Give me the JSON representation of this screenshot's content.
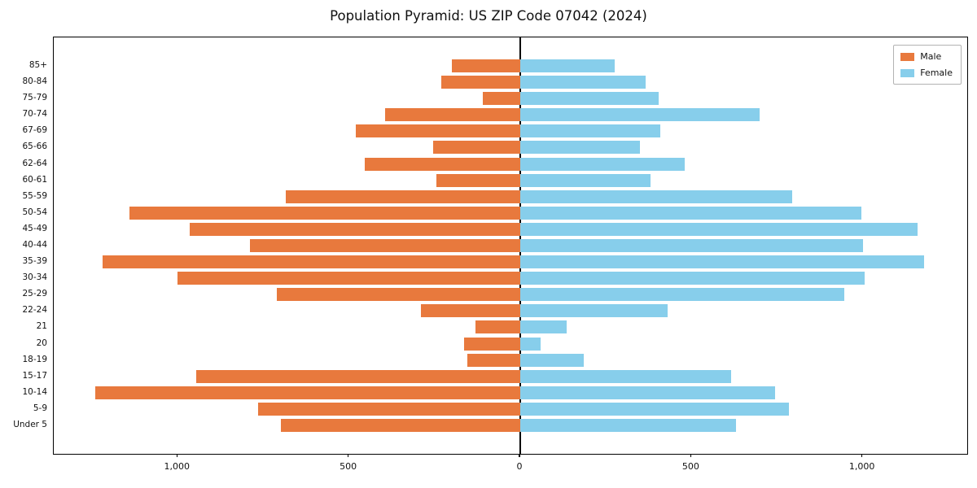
{
  "title": "Population Pyramid: US ZIP Code 07042 (2024)",
  "legend": {
    "male": "Male",
    "female": "Female"
  },
  "colors": {
    "male": "#E8793D",
    "female": "#87CEEB",
    "axis": "#000000"
  },
  "chart_data": {
    "type": "bar",
    "subtype": "population-pyramid",
    "title": "Population Pyramid: US ZIP Code 07042 (2024)",
    "categories": [
      "85+",
      "80-84",
      "75-79",
      "70-74",
      "67-69",
      "65-66",
      "62-64",
      "60-61",
      "55-59",
      "50-54",
      "45-49",
      "40-44",
      "35-39",
      "30-34",
      "25-29",
      "22-24",
      "21",
      "20",
      "18-19",
      "15-17",
      "10-14",
      "5-9",
      "Under 5"
    ],
    "series": [
      {
        "name": "Male",
        "side": "left",
        "color": "#E8793D",
        "values": [
          200,
          230,
          110,
          395,
          480,
          255,
          455,
          245,
          685,
          1140,
          965,
          790,
          1220,
          1000,
          710,
          290,
          130,
          165,
          155,
          945,
          1240,
          765,
          700
        ]
      },
      {
        "name": "Female",
        "side": "right",
        "color": "#87CEEB",
        "values": [
          275,
          365,
          405,
          700,
          410,
          350,
          480,
          380,
          795,
          995,
          1160,
          1000,
          1180,
          1005,
          945,
          430,
          135,
          60,
          185,
          615,
          745,
          785,
          630
        ]
      }
    ],
    "x_tick_labels": [
      "1,000",
      "500",
      "0",
      "500",
      "1,000"
    ],
    "x_tick_values": [
      -1000,
      -500,
      0,
      500,
      1000
    ],
    "xlim": [
      -1362,
      1305
    ],
    "grid": false,
    "legend_position": "upper right"
  }
}
